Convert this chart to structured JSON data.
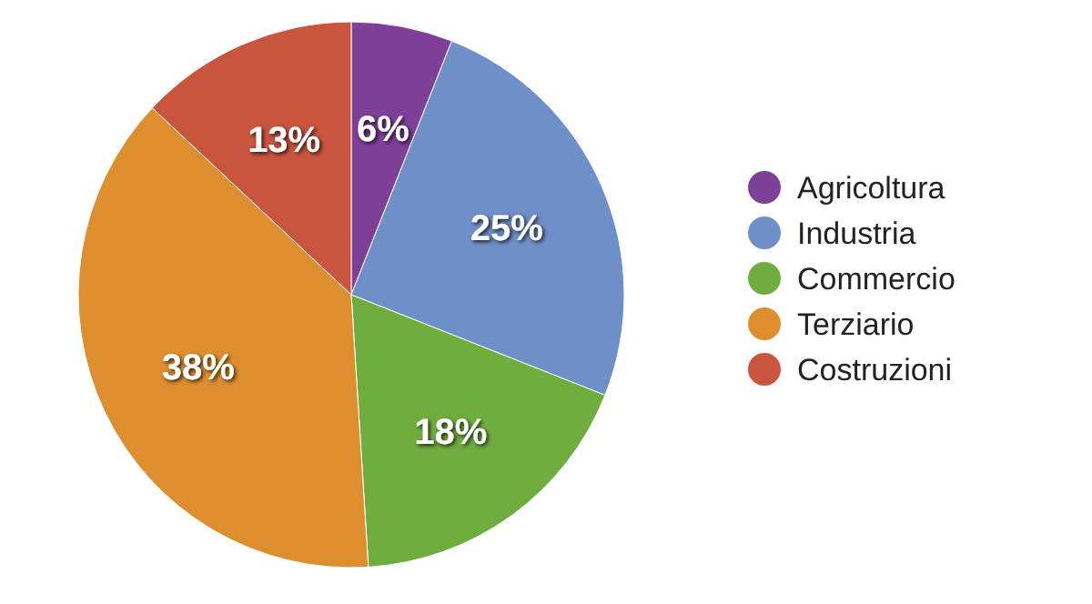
{
  "chart_data": {
    "type": "pie",
    "categories": [
      "Agricoltura",
      "Industria",
      "Commercio",
      "Terziario",
      "Costruzioni"
    ],
    "values": [
      6,
      25,
      18,
      38,
      13
    ],
    "colors": [
      "#7d3f98",
      "#6f8fc8",
      "#70ad3f",
      "#dd8f30",
      "#c9553f"
    ],
    "value_labels": [
      "6%",
      "25%",
      "18%",
      "38%",
      "13%"
    ],
    "legend": "right"
  }
}
